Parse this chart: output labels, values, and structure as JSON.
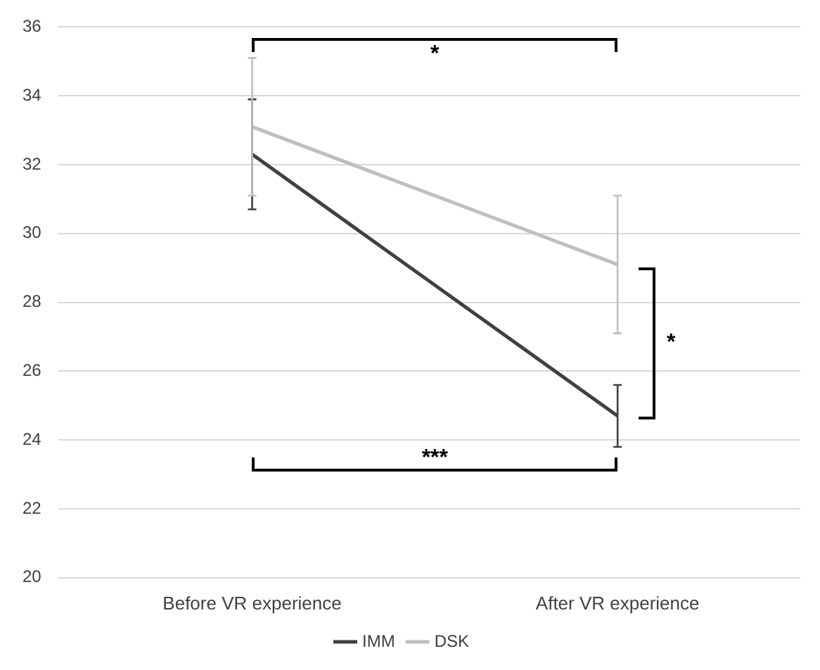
{
  "chart_data": {
    "type": "line",
    "categories": [
      "Before VR experience",
      "After VR experience"
    ],
    "series": [
      {
        "name": "IMM",
        "color": "#404040",
        "values": [
          32.3,
          24.7
        ],
        "errors": [
          1.6,
          0.9
        ]
      },
      {
        "name": "DSK",
        "color": "#bfbfbf",
        "values": [
          33.1,
          29.1
        ],
        "errors": [
          2.0,
          2.0
        ]
      }
    ],
    "ylim": [
      20,
      36
    ],
    "yticks": [
      20,
      22,
      24,
      26,
      28,
      30,
      32,
      34,
      36
    ],
    "grid": "y",
    "legend": "bottom",
    "marker": "none",
    "line_style": "solid",
    "annotations": [
      "*",
      "*",
      "***"
    ]
  }
}
